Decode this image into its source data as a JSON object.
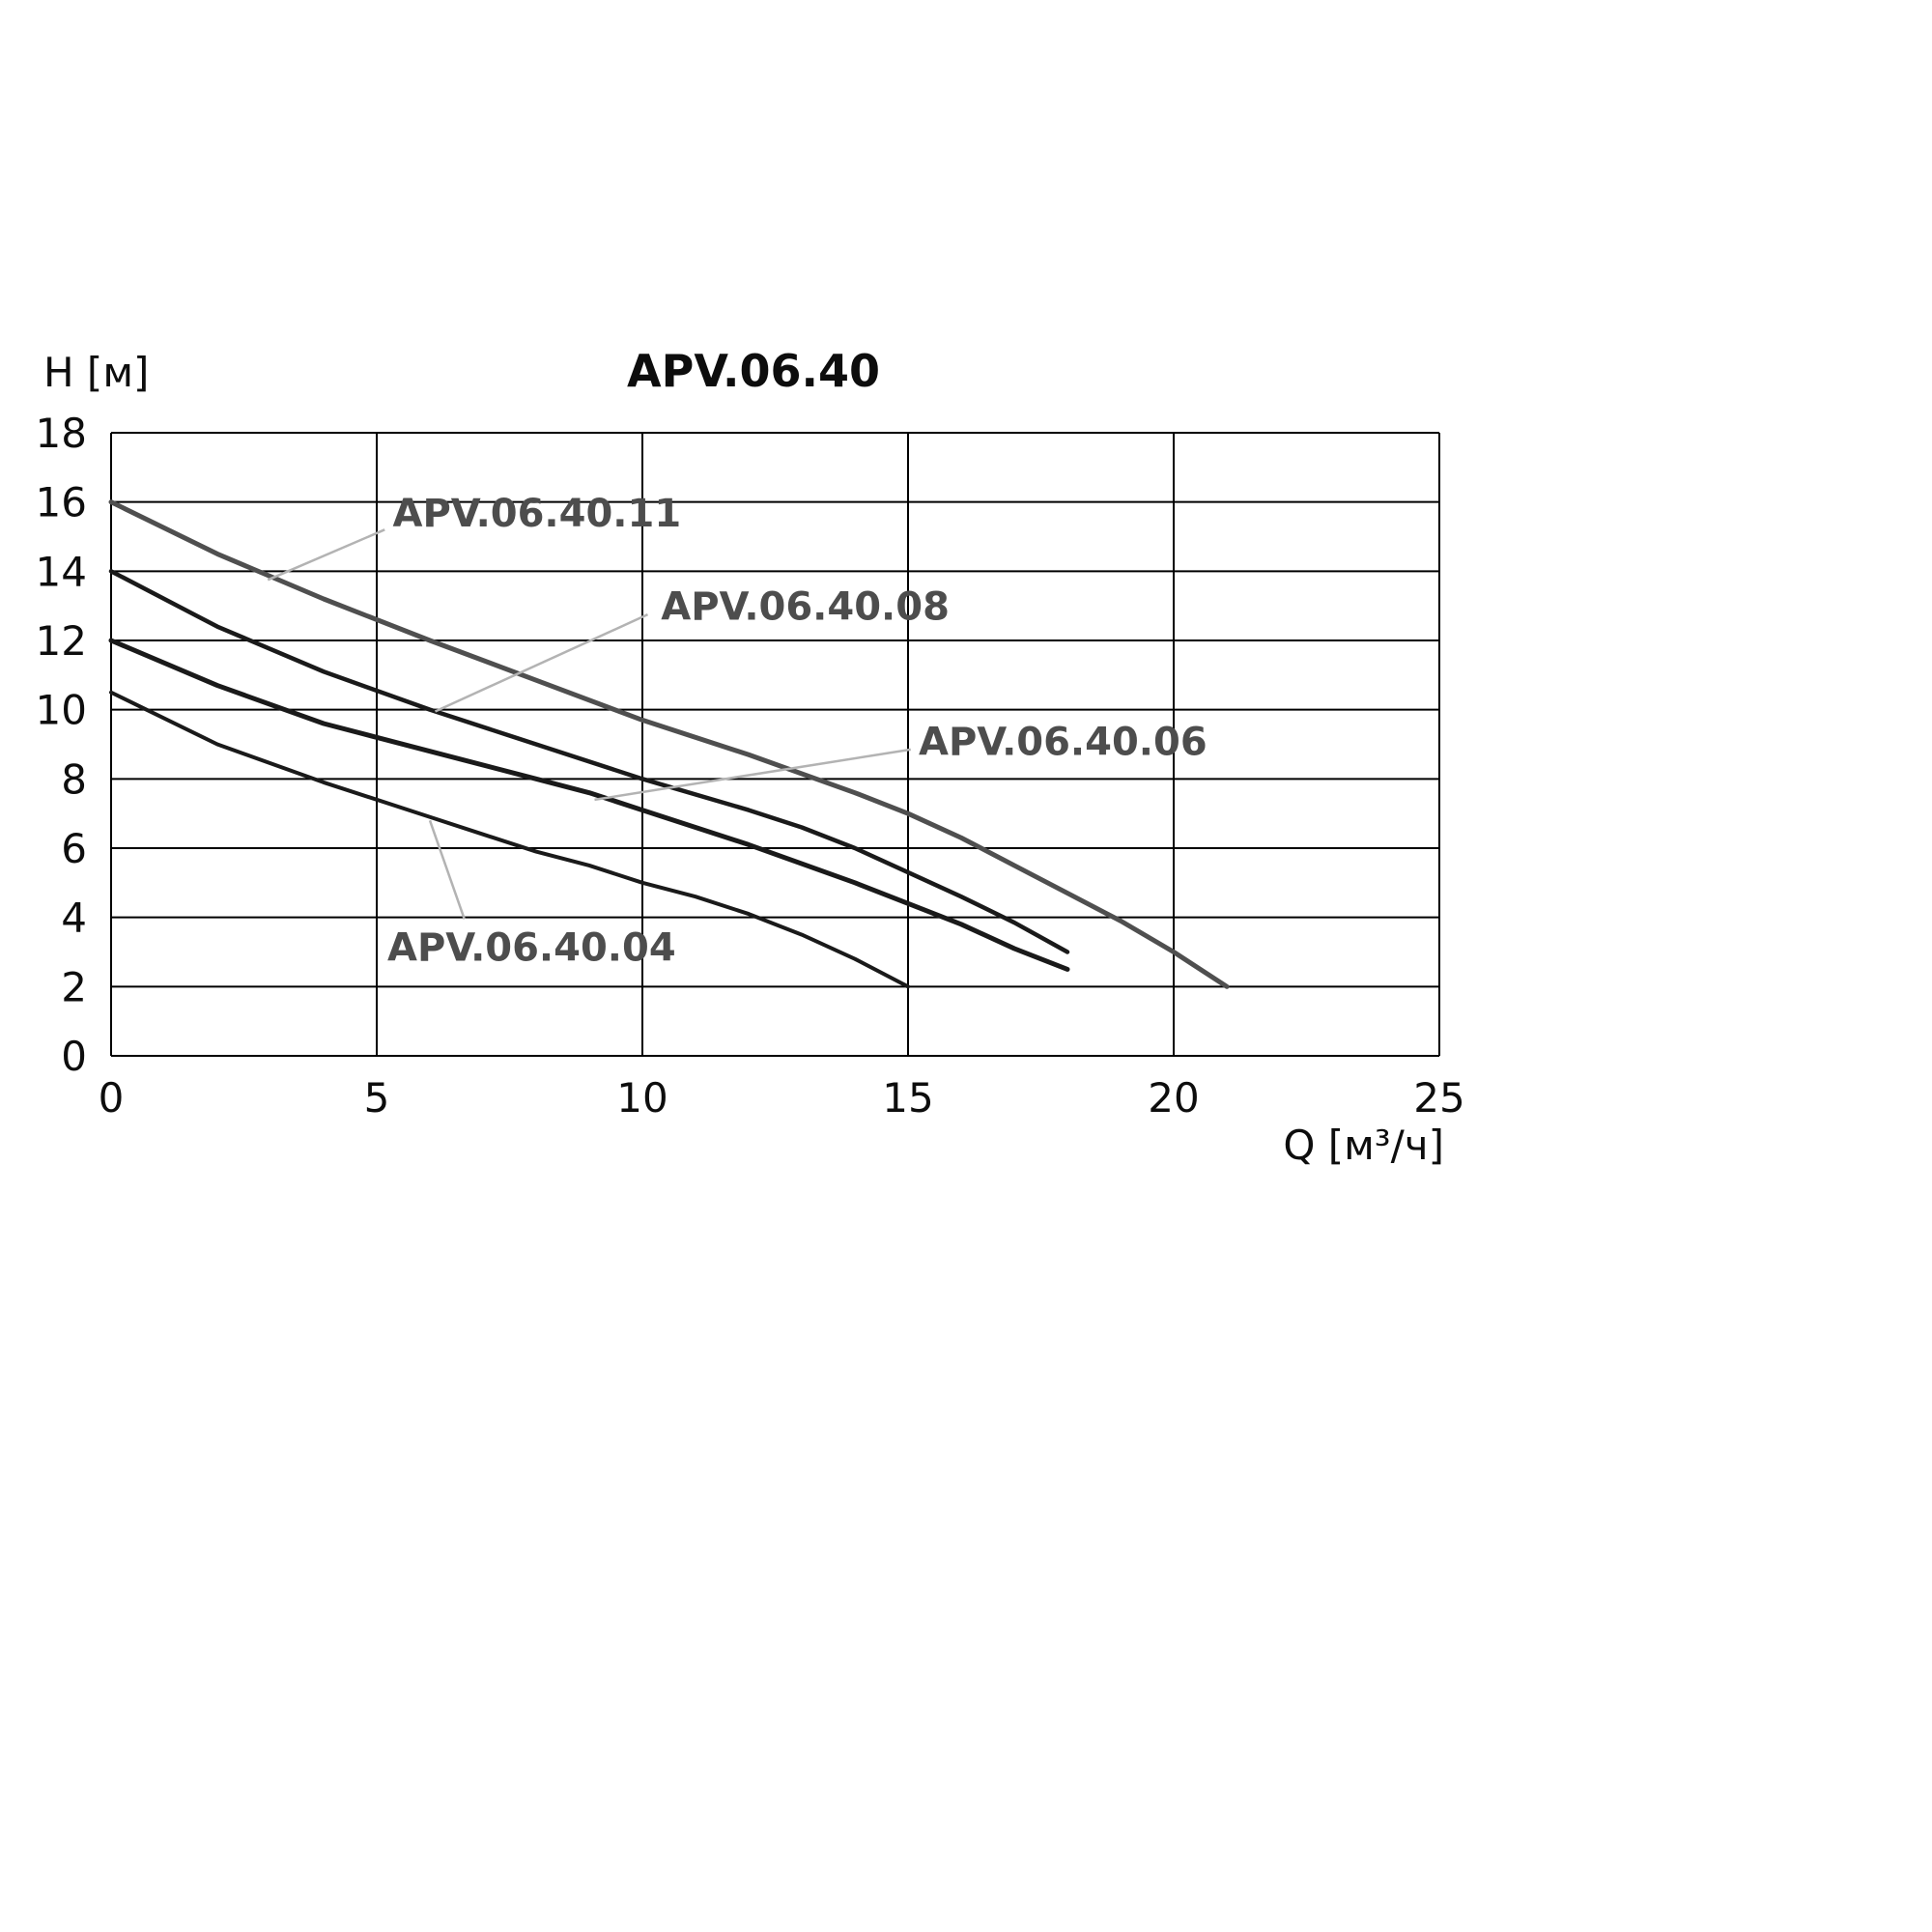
{
  "chart_data": {
    "type": "line",
    "title": "APV.06.40",
    "xlabel": "Q [м³/ч]",
    "ylabel": "H [м]",
    "xlim": [
      0,
      25
    ],
    "ylim": [
      0,
      18
    ],
    "xticks": [
      0,
      5,
      10,
      15,
      20,
      25
    ],
    "yticks": [
      0,
      2,
      4,
      6,
      8,
      10,
      12,
      14,
      16,
      18
    ],
    "grid": true,
    "legend_position": "inline-annotations",
    "series": [
      {
        "name": "APV.06.40.11",
        "color": "#4f4f4f",
        "width": 5,
        "points": [
          [
            0,
            16
          ],
          [
            2,
            14.5
          ],
          [
            4,
            13.2
          ],
          [
            6,
            12.0
          ],
          [
            8,
            10.85
          ],
          [
            10,
            9.7
          ],
          [
            12,
            8.7
          ],
          [
            14,
            7.6
          ],
          [
            15,
            7.0
          ],
          [
            16,
            6.3
          ],
          [
            17,
            5.5
          ],
          [
            18,
            4.7
          ],
          [
            19,
            3.9
          ],
          [
            20,
            3.0
          ],
          [
            21,
            2.0
          ]
        ]
      },
      {
        "name": "APV.06.40.08",
        "color": "#1a1a1a",
        "width": 4.5,
        "points": [
          [
            0,
            14
          ],
          [
            2,
            12.4
          ],
          [
            4,
            11.1
          ],
          [
            6,
            10.0
          ],
          [
            8,
            9.0
          ],
          [
            10,
            8.0
          ],
          [
            12,
            7.1
          ],
          [
            13,
            6.6
          ],
          [
            14,
            6.0
          ],
          [
            15,
            5.3
          ],
          [
            16,
            4.6
          ],
          [
            17,
            3.85
          ],
          [
            18,
            3.0
          ]
        ]
      },
      {
        "name": "APV.06.40.06",
        "color": "#1a1a1a",
        "width": 5,
        "points": [
          [
            0,
            12
          ],
          [
            2,
            10.7
          ],
          [
            4,
            9.6
          ],
          [
            6,
            8.8
          ],
          [
            8,
            8.0
          ],
          [
            9,
            7.6
          ],
          [
            10,
            7.1
          ],
          [
            12,
            6.1
          ],
          [
            14,
            5.0
          ],
          [
            15,
            4.4
          ],
          [
            16,
            3.8
          ],
          [
            17,
            3.1
          ],
          [
            18,
            2.5
          ]
        ]
      },
      {
        "name": "APV.06.40.04",
        "color": "#1a1a1a",
        "width": 4,
        "points": [
          [
            0,
            10.5
          ],
          [
            2,
            9.0
          ],
          [
            4,
            7.9
          ],
          [
            6,
            6.9
          ],
          [
            7,
            6.4
          ],
          [
            8,
            5.9
          ],
          [
            9,
            5.5
          ],
          [
            10,
            5.0
          ],
          [
            11,
            4.6
          ],
          [
            12,
            4.1
          ],
          [
            13,
            3.5
          ],
          [
            14,
            2.8
          ],
          [
            15,
            2.0
          ]
        ]
      }
    ],
    "annotations": [
      {
        "text": "APV.06.40.11",
        "label": [
          5.3,
          15.3
        ],
        "leader": [
          [
            5.15,
            15.2
          ],
          [
            2.95,
            13.75
          ]
        ]
      },
      {
        "text": "APV.06.40.08",
        "label": [
          10.35,
          12.6
        ],
        "leader": [
          [
            10.1,
            12.75
          ],
          [
            6.1,
            9.95
          ]
        ]
      },
      {
        "text": "APV.06.40.06",
        "label": [
          15.2,
          8.7
        ],
        "leader": [
          [
            15.05,
            8.85
          ],
          [
            9.1,
            7.4
          ]
        ]
      },
      {
        "text": "APV.06.40.04",
        "label": [
          5.2,
          2.75
        ],
        "leader": [
          [
            6.65,
            3.95
          ],
          [
            6.0,
            6.8
          ]
        ]
      }
    ]
  }
}
